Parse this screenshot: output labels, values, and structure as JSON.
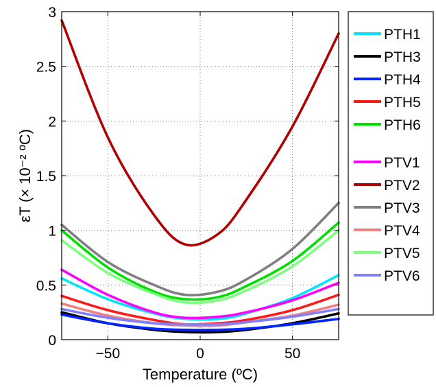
{
  "chart_data": {
    "type": "line",
    "xlabel": "Temperature (ºC)",
    "ylabel": "εT (× 10⁻² ºC)",
    "xlim": [
      -75,
      75
    ],
    "ylim": [
      0,
      3
    ],
    "xticks": [
      -50,
      0,
      50
    ],
    "xtick_labels": [
      "−50",
      "0",
      "50"
    ],
    "yticks": [
      0,
      0.5,
      1,
      1.5,
      2,
      2.5,
      3
    ],
    "ytick_labels": [
      "0",
      "0.5",
      "1",
      "1.5",
      "2",
      "2.5",
      "3"
    ],
    "grid": true,
    "legend_position": "outside-right",
    "x": [
      -75,
      -50,
      -25,
      -8,
      10,
      25,
      50,
      75
    ],
    "series": [
      {
        "name": "PTH1",
        "color": "#00e5ff",
        "values": [
          0.56,
          0.37,
          0.24,
          0.19,
          0.19,
          0.24,
          0.38,
          0.59
        ]
      },
      {
        "name": "PTH3",
        "color": "#000000",
        "values": [
          0.25,
          0.15,
          0.09,
          0.07,
          0.07,
          0.09,
          0.15,
          0.24
        ]
      },
      {
        "name": "PTH4",
        "color": "#0026ff",
        "values": [
          0.23,
          0.15,
          0.1,
          0.09,
          0.09,
          0.1,
          0.14,
          0.19
        ]
      },
      {
        "name": "PTH5",
        "color": "#ff1a1a",
        "values": [
          0.4,
          0.27,
          0.18,
          0.14,
          0.15,
          0.18,
          0.27,
          0.41
        ]
      },
      {
        "name": "PTH6",
        "color": "#00e000",
        "values": [
          1.0,
          0.66,
          0.44,
          0.37,
          0.39,
          0.49,
          0.72,
          1.07
        ]
      },
      {
        "name": "PTV1",
        "color": "#ff00ff",
        "values": [
          0.64,
          0.41,
          0.25,
          0.2,
          0.21,
          0.25,
          0.36,
          0.52
        ]
      },
      {
        "name": "PTV2",
        "color": "#b00000",
        "values": [
          2.92,
          1.85,
          1.14,
          0.87,
          0.97,
          1.28,
          1.95,
          2.8
        ]
      },
      {
        "name": "PTV3",
        "color": "#7f7f7f",
        "values": [
          1.05,
          0.71,
          0.5,
          0.41,
          0.44,
          0.55,
          0.83,
          1.25
        ]
      },
      {
        "name": "PTV4",
        "color": "#f08080",
        "values": [
          0.33,
          0.22,
          0.15,
          0.13,
          0.13,
          0.16,
          0.22,
          0.32
        ]
      },
      {
        "name": "PTV5",
        "color": "#7fff7f",
        "values": [
          0.91,
          0.61,
          0.42,
          0.34,
          0.36,
          0.45,
          0.67,
          1.0
        ]
      },
      {
        "name": "PTV6",
        "color": "#7f7fff",
        "values": [
          0.28,
          0.2,
          0.15,
          0.14,
          0.14,
          0.16,
          0.21,
          0.28
        ]
      }
    ],
    "legend_groups": [
      [
        "PTH1",
        "PTH3",
        "PTH4",
        "PTH5",
        "PTH6"
      ],
      [
        "PTV1",
        "PTV2",
        "PTV3",
        "PTV4",
        "PTV5",
        "PTV6"
      ]
    ]
  }
}
